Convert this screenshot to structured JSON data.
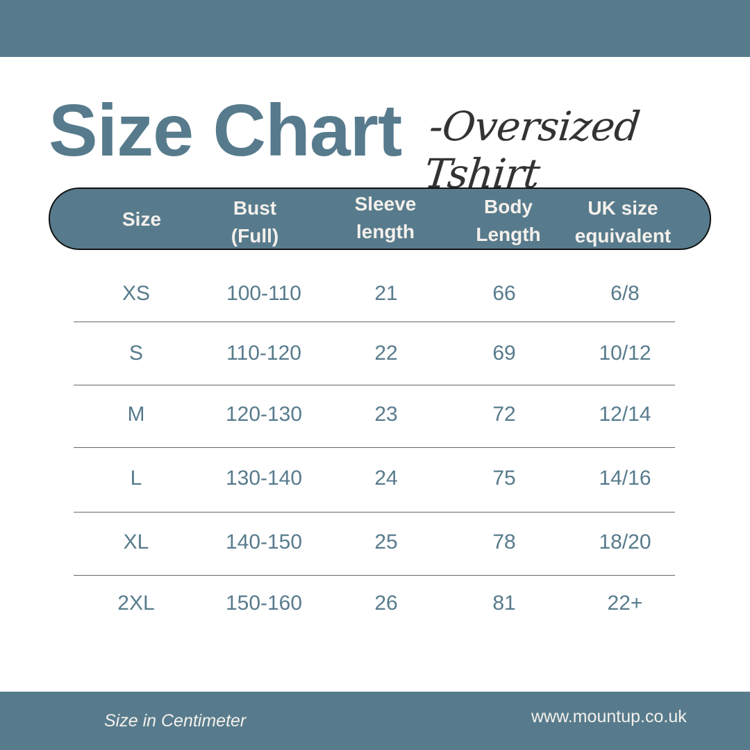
{
  "title": "Size Chart",
  "subtitle": "-Oversized Tshirt",
  "columns": [
    [
      "Size"
    ],
    [
      "Bust",
      "(Full)"
    ],
    [
      "Sleeve",
      "length"
    ],
    [
      "Body",
      "Length"
    ],
    [
      "UK size",
      "equivalent"
    ]
  ],
  "rows": [
    [
      "XS",
      "100-110",
      "21",
      "66",
      "6/8"
    ],
    [
      "S",
      "110-120",
      "22",
      "69",
      "10/12"
    ],
    [
      "M",
      "120-130",
      "23",
      "72",
      "12/14"
    ],
    [
      "L",
      "130-140",
      "24",
      "75",
      "14/16"
    ],
    [
      "XL",
      "140-150",
      "25",
      "78",
      "18/20"
    ],
    [
      "2XL",
      "150-160",
      "26",
      "81",
      "22+"
    ]
  ],
  "footer": {
    "unit_note": "Size in Centimeter",
    "website": "www.mountup.co.uk"
  },
  "colors": {
    "accent": "#577b8c",
    "header_text": "#f4f0ec"
  }
}
